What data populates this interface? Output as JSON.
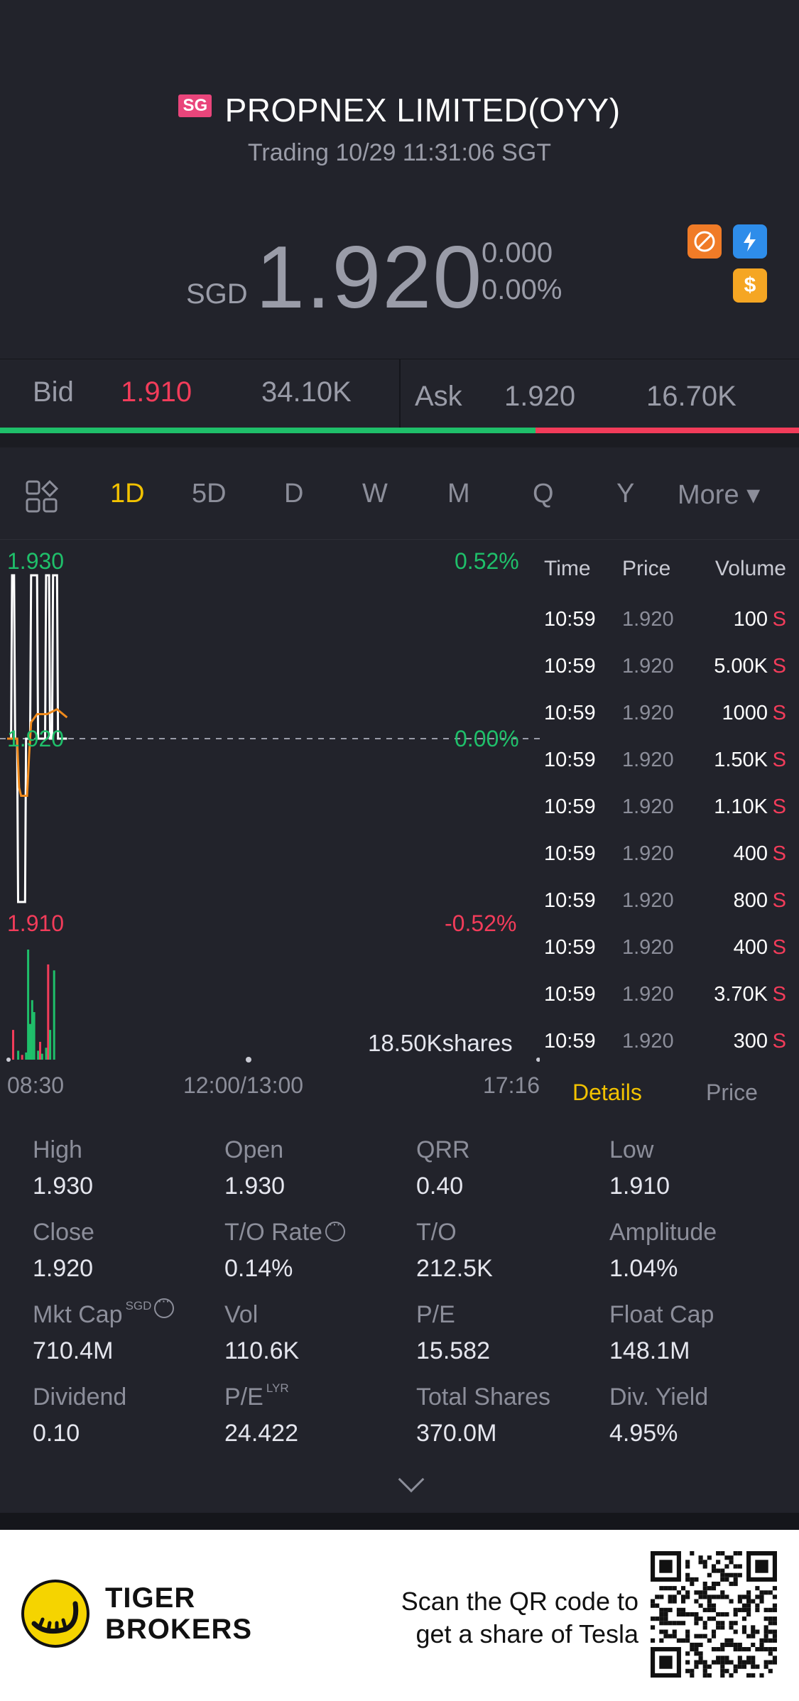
{
  "header": {
    "market_badge": "SG",
    "stock_name": "PROPNEX LIMITED(OYY)",
    "status": "Trading 10/29 11:31:06 SGT",
    "currency": "SGD",
    "price": "1.920",
    "change": "0.000",
    "change_pct": "0.00%",
    "icon_colors": {
      "ban": "#f07b27",
      "flash": "#2e8dea",
      "dollar": "#f5a623"
    }
  },
  "bidask": {
    "bid_label": "Bid",
    "bid_price": "1.910",
    "bid_size": "34.10K",
    "ask_label": "Ask",
    "ask_price": "1.920",
    "ask_size": "16.70K",
    "bid_fraction": 0.67
  },
  "tabs": [
    "1D",
    "5D",
    "D",
    "W",
    "M",
    "Q",
    "Y",
    "More ▾"
  ],
  "active_tab": "1D",
  "chart": {
    "high_label": "1.930",
    "mid_label": "1.920",
    "low_label": "1.910",
    "high_pct": "0.52%",
    "mid_pct": "0.00%",
    "low_pct": "-0.52%",
    "volume_label": "18.50Kshares",
    "time_start": "08:30",
    "time_mid": "12:00/13:00",
    "time_end": "17:16",
    "colors": {
      "price": "#ffffff",
      "avg": "#f08a1c",
      "up": "#1fbf6a",
      "down": "#f23c5a"
    }
  },
  "chart_data": {
    "type": "line",
    "title": "",
    "ylim": [
      1.91,
      1.93
    ],
    "series": [
      {
        "x": [
          "08:30",
          "08:34",
          "08:35",
          "08:37",
          "08:38",
          "08:40",
          "08:41",
          "08:48",
          "08:49",
          "08:53",
          "08:54",
          "09:00",
          "09:01",
          "09:08",
          "09:09",
          "09:12",
          "09:13",
          "09:15",
          "09:16",
          "09:20",
          "09:21",
          "09:30"
        ],
        "values": [
          1.92,
          1.92,
          1.93,
          1.93,
          1.92,
          1.92,
          1.91,
          1.91,
          1.92,
          1.92,
          1.93,
          1.93,
          1.92,
          1.92,
          1.93,
          1.93,
          1.92,
          1.92,
          1.93,
          1.93,
          1.92,
          1.92
        ]
      },
      {
        "x": [
          "08:30",
          "08:40",
          "08:42",
          "08:44",
          "08:50",
          "08:52",
          "08:54",
          "09:00",
          "09:10",
          "09:20",
          "09:30"
        ],
        "values": [
          1.92,
          1.92,
          1.917,
          1.9165,
          1.9165,
          1.919,
          1.921,
          1.9215,
          1.9215,
          1.9218,
          1.9213
        ]
      }
    ],
    "volume": {
      "x": [
        "08:35",
        "08:40",
        "08:44",
        "08:48",
        "08:50",
        "08:52",
        "08:54",
        "08:56",
        "09:00",
        "09:02",
        "09:04",
        "09:08",
        "09:10",
        "09:12",
        "09:16"
      ],
      "values": [
        5,
        1.5,
        0.8,
        1.2,
        18.5,
        6,
        10,
        8,
        1.5,
        3,
        1,
        2,
        16,
        5,
        15
      ],
      "direction": [
        "down",
        "up",
        "down",
        "up",
        "up",
        "up",
        "up",
        "up",
        "up",
        "down",
        "up",
        "up",
        "down",
        "up",
        "up"
      ]
    }
  },
  "trades": {
    "headers": [
      "Time",
      "Price",
      "Volume"
    ],
    "rows": [
      {
        "time": "10:59",
        "price": "1.920",
        "volume": "100",
        "side": "S"
      },
      {
        "time": "10:59",
        "price": "1.920",
        "volume": "5.00K",
        "side": "S"
      },
      {
        "time": "10:59",
        "price": "1.920",
        "volume": "1000",
        "side": "S"
      },
      {
        "time": "10:59",
        "price": "1.920",
        "volume": "1.50K",
        "side": "S"
      },
      {
        "time": "10:59",
        "price": "1.920",
        "volume": "1.10K",
        "side": "S"
      },
      {
        "time": "10:59",
        "price": "1.920",
        "volume": "400",
        "side": "S"
      },
      {
        "time": "10:59",
        "price": "1.920",
        "volume": "800",
        "side": "S"
      },
      {
        "time": "10:59",
        "price": "1.920",
        "volume": "400",
        "side": "S"
      },
      {
        "time": "10:59",
        "price": "1.920",
        "volume": "3.70K",
        "side": "S"
      },
      {
        "time": "10:59",
        "price": "1.920",
        "volume": "300",
        "side": "S"
      }
    ],
    "tab_details": "Details",
    "tab_price": "Price"
  },
  "stats": {
    "high": {
      "label": "High",
      "value": "1.930"
    },
    "open": {
      "label": "Open",
      "value": "1.930"
    },
    "qrr": {
      "label": "QRR",
      "value": "0.40"
    },
    "low": {
      "label": "Low",
      "value": "1.910"
    },
    "close": {
      "label": "Close",
      "value": "1.920"
    },
    "to_rate": {
      "label": "T/O Rate",
      "value": "0.14%"
    },
    "to": {
      "label": "T/O",
      "value": "212.5K"
    },
    "amplitude": {
      "label": "Amplitude",
      "value": "1.04%"
    },
    "mkt_cap": {
      "label": "Mkt Cap",
      "sup": "SGD",
      "value": "710.4M"
    },
    "vol": {
      "label": "Vol",
      "value": "110.6K"
    },
    "pe": {
      "label": "P/E",
      "value": "15.582"
    },
    "float_cap": {
      "label": "Float Cap",
      "value": "148.1M"
    },
    "dividend": {
      "label": "Dividend",
      "value": "0.10"
    },
    "pe_lyr": {
      "label": "P/E",
      "sup": "LYR",
      "value": "24.422"
    },
    "total_shares": {
      "label": "Total Shares",
      "value": "370.0M"
    },
    "div_yield": {
      "label": "Div. Yield",
      "value": "4.95%"
    }
  },
  "footer": {
    "brand_line1": "TIGER",
    "brand_line2": "BROKERS",
    "promo_line1": "Scan the QR code to",
    "promo_line2": "get a share of Tesla"
  }
}
